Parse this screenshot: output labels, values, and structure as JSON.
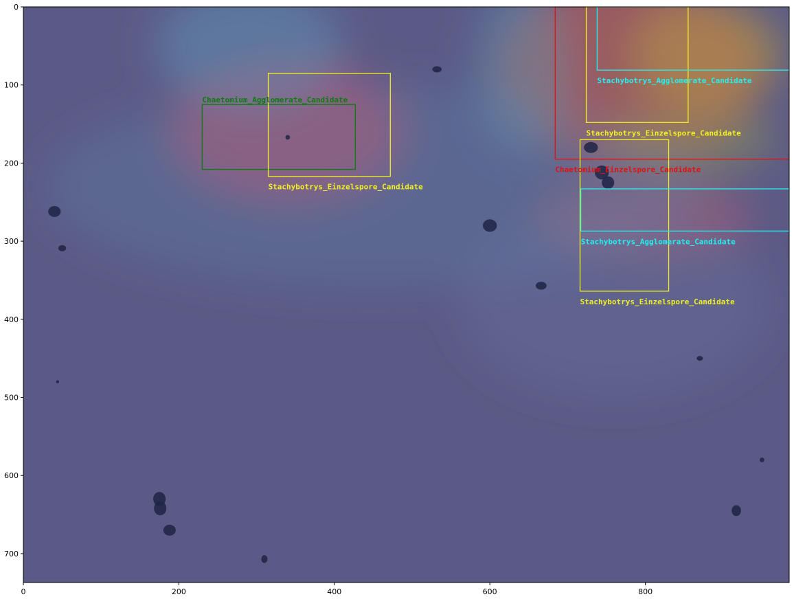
{
  "image": {
    "width": 985,
    "height": 737,
    "base_color": "#5b5a86"
  },
  "axes": {
    "x_ticks": [
      0,
      200,
      400,
      600,
      800
    ],
    "y_ticks": [
      0,
      100,
      200,
      300,
      400,
      500,
      600,
      700
    ],
    "x_range": [
      0,
      985
    ],
    "y_range": [
      737,
      0
    ],
    "grid": false
  },
  "heatmap_regions": [
    {
      "cx": 340,
      "cy": 160,
      "rx": 150,
      "ry": 90,
      "color": "#c94f6a",
      "opacity": 0.55
    },
    {
      "cx": 780,
      "cy": 80,
      "rx": 170,
      "ry": 120,
      "color": "#c25a4a",
      "opacity": 0.6
    },
    {
      "cx": 880,
      "cy": 60,
      "rx": 100,
      "ry": 70,
      "color": "#b8a040",
      "opacity": 0.5
    },
    {
      "cx": 800,
      "cy": 270,
      "rx": 140,
      "ry": 50,
      "color": "#b86070",
      "opacity": 0.45
    },
    {
      "cx": 860,
      "cy": 170,
      "rx": 110,
      "ry": 45,
      "color": "#9aa050",
      "opacity": 0.4
    },
    {
      "cx": 290,
      "cy": 50,
      "rx": 120,
      "ry": 80,
      "color": "#5e9aba",
      "opacity": 0.45
    },
    {
      "cx": 640,
      "cy": 80,
      "rx": 60,
      "ry": 110,
      "color": "#5a9ab8",
      "opacity": 0.4
    },
    {
      "cx": 450,
      "cy": 230,
      "rx": 420,
      "ry": 130,
      "color": "#5a8ab0",
      "opacity": 0.25
    },
    {
      "cx": 760,
      "cy": 380,
      "rx": 200,
      "ry": 120,
      "color": "#6a7aa8",
      "opacity": 0.25
    }
  ],
  "spores": [
    {
      "x": 40,
      "y": 262,
      "rx": 8,
      "ry": 7
    },
    {
      "x": 50,
      "y": 309,
      "rx": 5,
      "ry": 4
    },
    {
      "x": 600,
      "y": 280,
      "rx": 9,
      "ry": 8
    },
    {
      "x": 666,
      "y": 357,
      "rx": 7,
      "ry": 5
    },
    {
      "x": 532,
      "y": 80,
      "rx": 6,
      "ry": 4
    },
    {
      "x": 175,
      "y": 630,
      "rx": 8,
      "ry": 9
    },
    {
      "x": 176,
      "y": 642,
      "rx": 8,
      "ry": 9
    },
    {
      "x": 188,
      "y": 670,
      "rx": 8,
      "ry": 7
    },
    {
      "x": 917,
      "y": 645,
      "rx": 6,
      "ry": 7
    },
    {
      "x": 340,
      "y": 167,
      "rx": 3,
      "ry": 3
    },
    {
      "x": 44,
      "y": 480,
      "rx": 2,
      "ry": 2
    },
    {
      "x": 870,
      "y": 450,
      "rx": 4,
      "ry": 3
    },
    {
      "x": 950,
      "y": 580,
      "rx": 3,
      "ry": 3
    },
    {
      "x": 310,
      "y": 707,
      "rx": 4,
      "ry": 5
    },
    {
      "x": 744,
      "y": 212,
      "rx": 9,
      "ry": 9
    },
    {
      "x": 752,
      "y": 225,
      "rx": 8,
      "ry": 8
    },
    {
      "x": 730,
      "y": 180,
      "rx": 9,
      "ry": 7
    }
  ],
  "detections": [
    {
      "label": "Chaetomium_Agglomerate_Candidate",
      "x0": 230,
      "y0": 125,
      "x1": 427,
      "y1": 208,
      "color": "#0a7d0a",
      "label_pos": "above"
    },
    {
      "label": "Stachybotrys_Einzelspore_Candidate",
      "x0": 315,
      "y0": 85,
      "x1": 472,
      "y1": 217,
      "color": "#f0f020",
      "label_pos": "below"
    },
    {
      "label": "Chaetomium_Einzelspore_Candidate",
      "x0": 684,
      "y0": 0,
      "x1": 985,
      "y1": 195,
      "color": "#e01010",
      "label_pos": "below"
    },
    {
      "label": "Stachybotrys_Einzelspore_Candidate",
      "x0": 724,
      "y0": 0,
      "x1": 855,
      "y1": 148,
      "color": "#f0f020",
      "label_pos": "below"
    },
    {
      "label": "Stachybotrys_Agglomerate_Candidate",
      "x0": 738,
      "y0": 0,
      "x1": 985,
      "y1": 81,
      "color": "#20f0f0",
      "label_pos": "below"
    },
    {
      "label": "Stachybotrys_Einzelspore_Candidate",
      "x0": 716,
      "y0": 170,
      "x1": 830,
      "y1": 364,
      "color": "#f0f020",
      "label_pos": "below"
    },
    {
      "label": "Stachybotrys_Agglomerate_Candidate",
      "x0": 717,
      "y0": 233,
      "x1": 985,
      "y1": 287,
      "color": "#20f0f0",
      "label_pos": "below"
    }
  ]
}
